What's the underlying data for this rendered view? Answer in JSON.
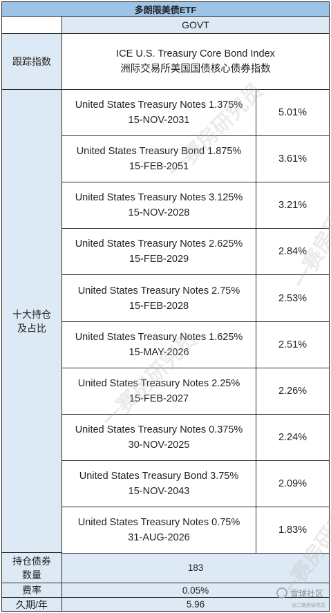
{
  "fund_name": "多朗限美债ETF",
  "ticker": "GOVT",
  "index": {
    "label": "跟踪指数",
    "name_en": "ICE U.S. Treasury Core Bond Index",
    "name_cn": "洲际交易所美国国债核心债券指数"
  },
  "holdings_label_line1": "十大持仓",
  "holdings_label_line2": "及占比",
  "holdings": [
    {
      "name": "United States Treasury Notes 1.375%",
      "date": "15-NOV-2031",
      "weight": "5.01%"
    },
    {
      "name": "United States Treasury Bond 1.875%",
      "date": "15-FEB-2051",
      "weight": "3.61%"
    },
    {
      "name": "United States Treasury Notes 3.125%",
      "date": "15-NOV-2028",
      "weight": "3.21%"
    },
    {
      "name": "United States Treasury Notes 2.625%",
      "date": "15-FEB-2029",
      "weight": "2.84%"
    },
    {
      "name": "United States Treasury Notes 2.75%",
      "date": "15-FEB-2028",
      "weight": "2.53%"
    },
    {
      "name": "United States Treasury Notes 1.625%",
      "date": "15-MAY-2026",
      "weight": "2.51%"
    },
    {
      "name": "United States Treasury Notes 2.25%",
      "date": "15-FEB-2027",
      "weight": "2.26%"
    },
    {
      "name": "United States Treasury Notes 0.375%",
      "date": "30-NOV-2025",
      "weight": "2.24%"
    },
    {
      "name": "United States Treasury Bond 3.75%",
      "date": "15-NOV-2043",
      "weight": "2.09%"
    },
    {
      "name": "United States Treasury Notes 0.75%",
      "date": "31-AUG-2026",
      "weight": "1.83%"
    }
  ],
  "count": {
    "label_line1": "持仓债券",
    "label_line2": "数量",
    "value": "183"
  },
  "fee": {
    "label": "费率",
    "value": "0.05%"
  },
  "duration": {
    "label": "久期/年",
    "value": "5.96"
  },
  "watermark": {
    "text": "一赛房研究员",
    "logo_text": "雪球社区",
    "logo_sub": "@二赛房研究员"
  }
}
